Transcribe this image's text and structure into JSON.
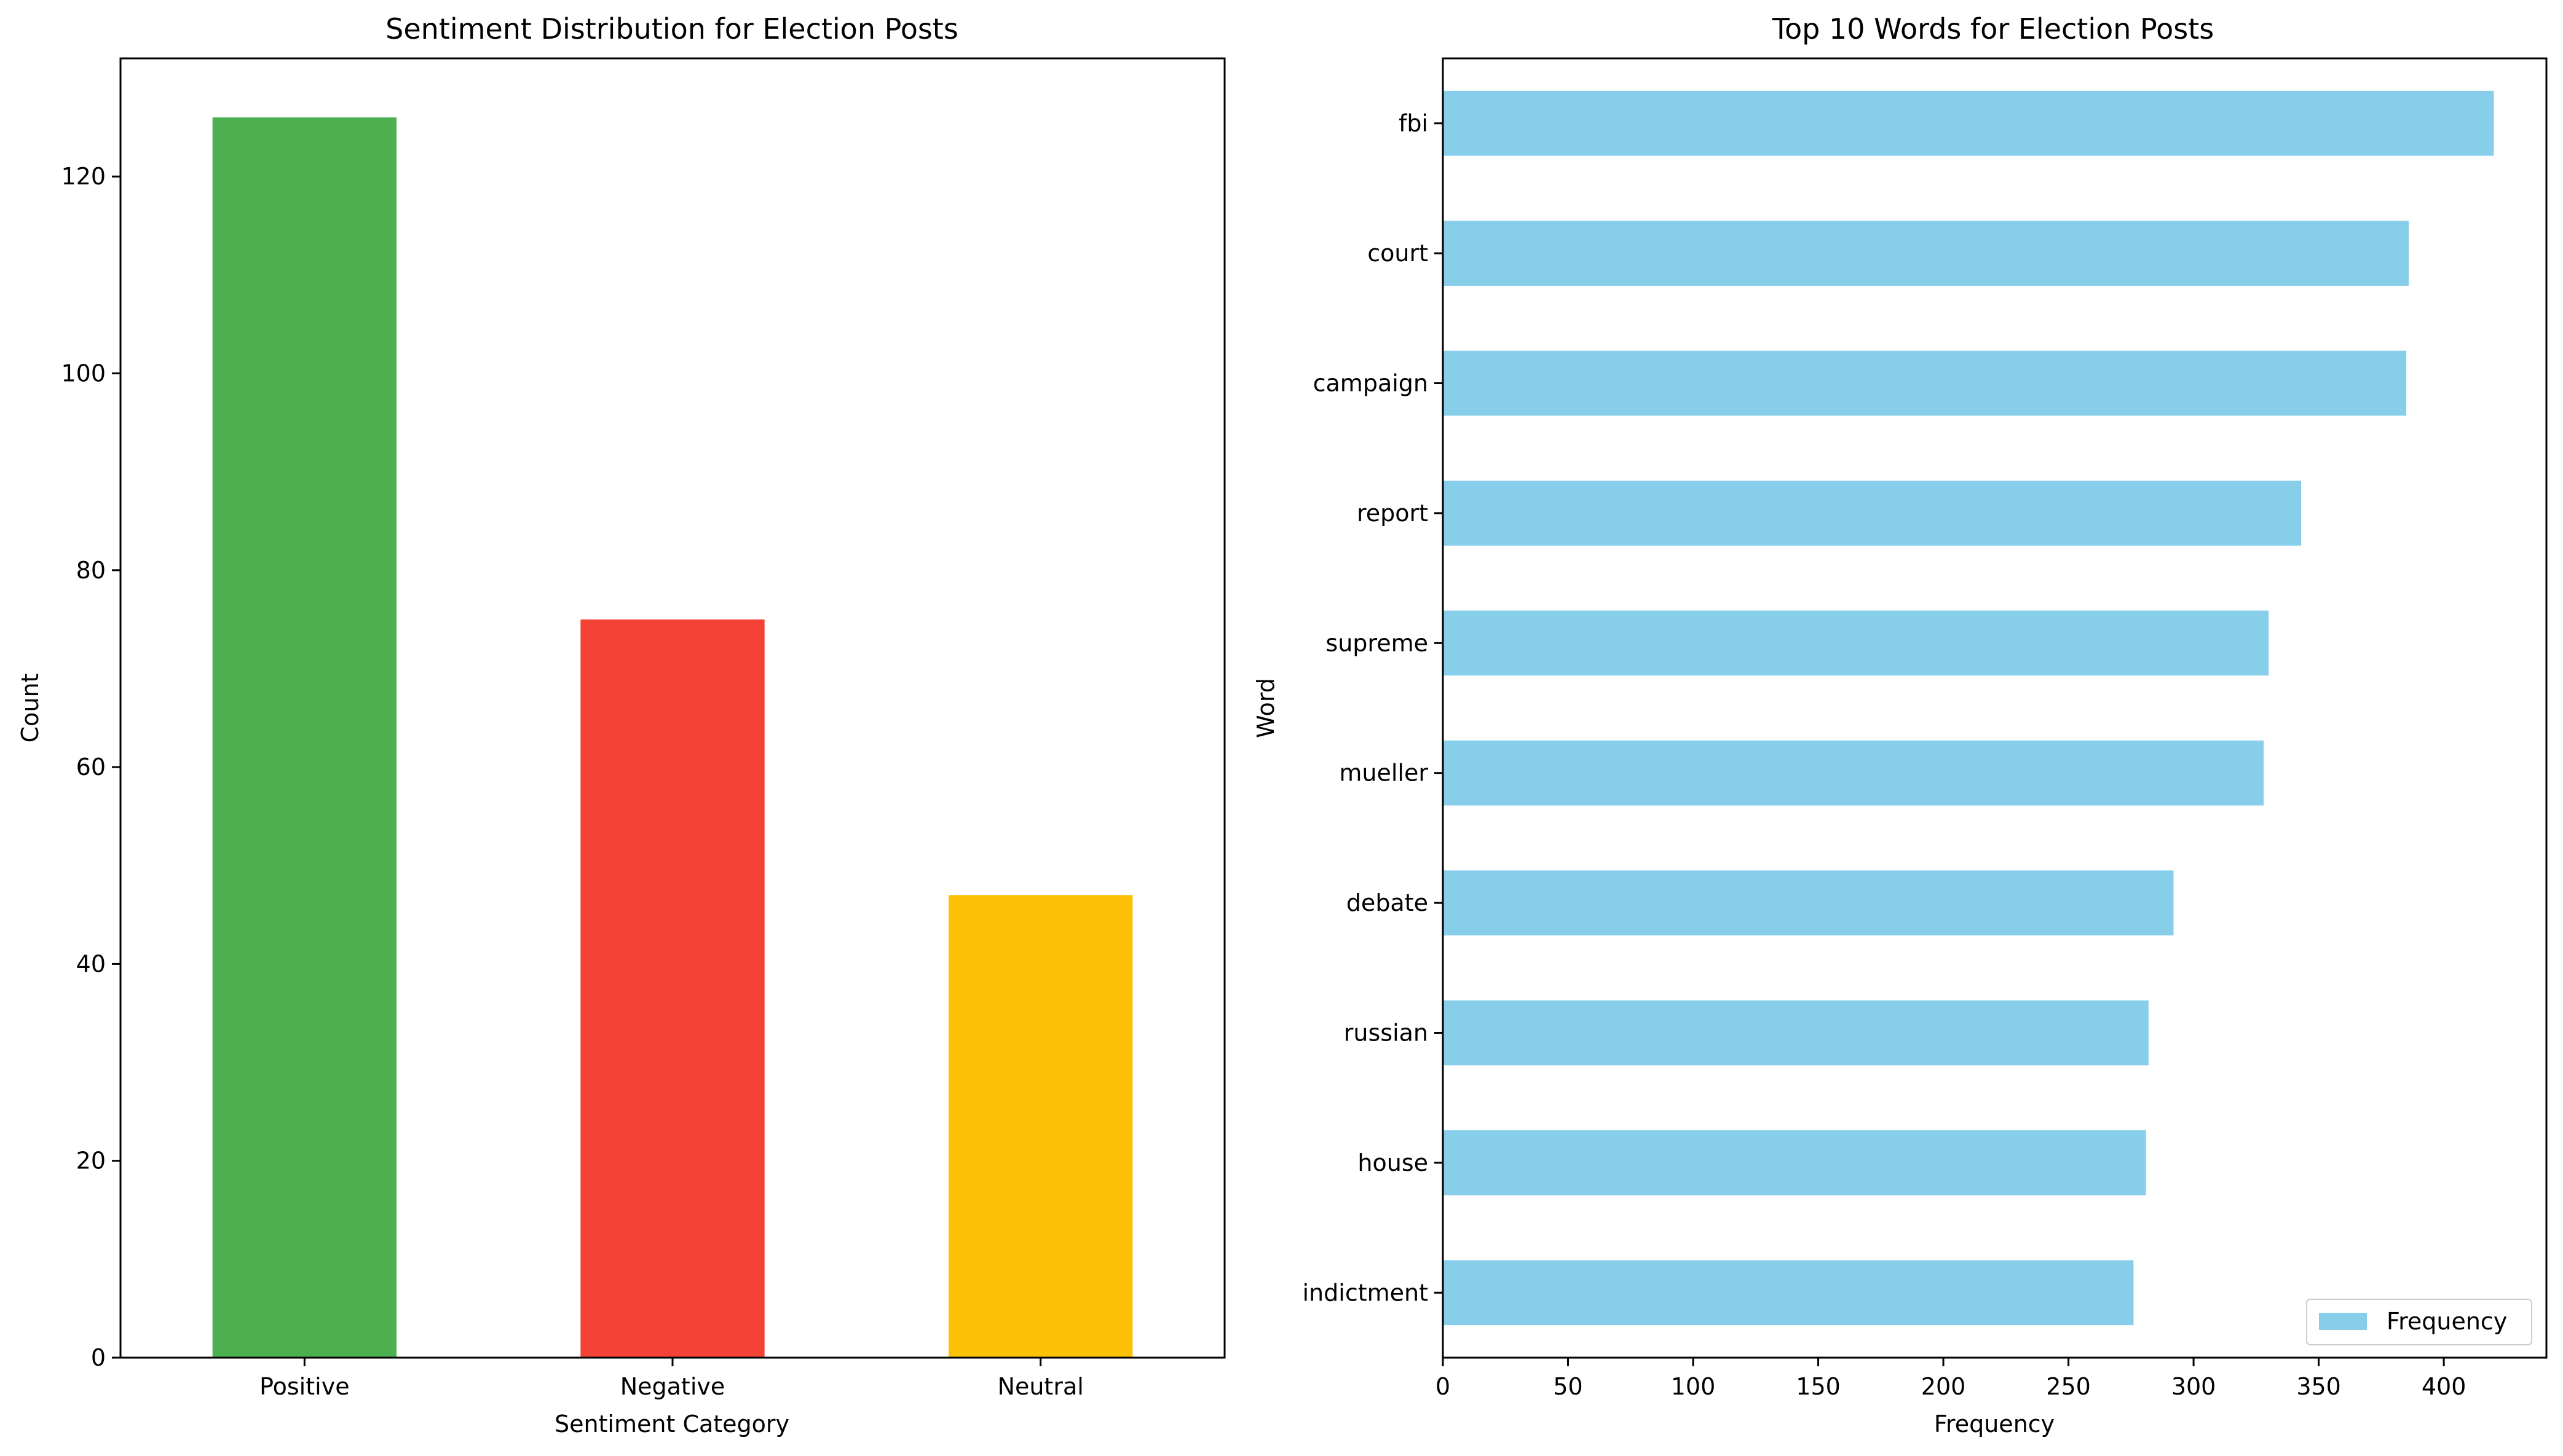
{
  "chart_data": [
    {
      "type": "bar",
      "title": "Sentiment Distribution for Election Posts",
      "xlabel": "Sentiment Category",
      "ylabel": "Count",
      "categories": [
        "Positive",
        "Negative",
        "Neutral"
      ],
      "values": [
        126,
        75,
        47
      ],
      "colors": [
        "#4caf50",
        "#f44336",
        "#fdc107"
      ],
      "ylim": [
        0,
        132
      ],
      "yticks": [
        0,
        20,
        40,
        60,
        80,
        100,
        120
      ],
      "grid": false,
      "legend": null
    },
    {
      "type": "bar",
      "orientation": "horizontal",
      "title": "Top 10 Words for Election Posts",
      "xlabel": "Frequency",
      "ylabel": "Word",
      "categories": [
        "fbi",
        "court",
        "campaign",
        "report",
        "supreme",
        "mueller",
        "debate",
        "russian",
        "house",
        "indictment"
      ],
      "series": [
        {
          "name": "Frequency",
          "values": [
            420,
            386,
            385,
            343,
            330,
            328,
            292,
            282,
            281,
            276
          ],
          "color": "#87ceeb"
        }
      ],
      "xlim": [
        0,
        441
      ],
      "xticks": [
        0,
        50,
        100,
        150,
        200,
        250,
        300,
        350,
        400
      ],
      "grid": false,
      "legend": "lower-right"
    }
  ]
}
